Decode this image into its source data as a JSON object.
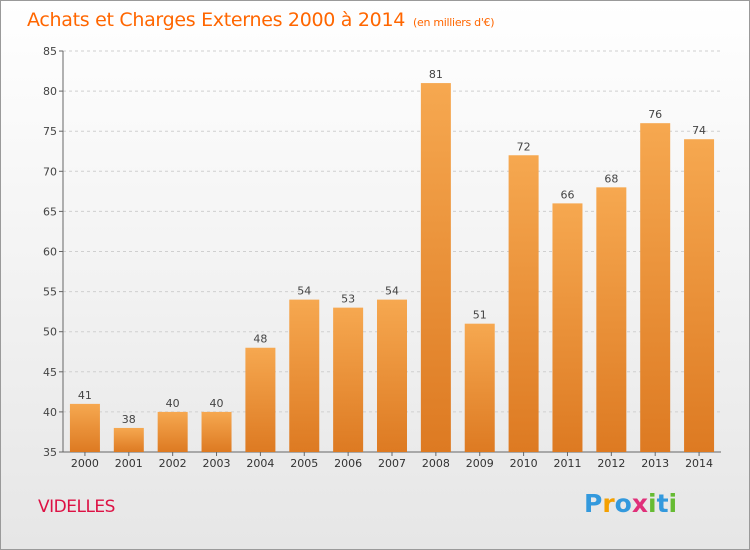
{
  "title": "Achats et Charges Externes 2000 à 2014",
  "unit": "(en milliers d'€)",
  "place": "VIDELLES",
  "logo": {
    "letters": [
      "P",
      "r",
      "o",
      "x",
      "i",
      "t",
      "i"
    ],
    "colors": [
      "#3399dd",
      "#f4a000",
      "#3399dd",
      "#e0307a",
      "#66bb33",
      "#3399dd",
      "#66bb33"
    ]
  },
  "colors": {
    "bar_light": "#f6a850",
    "bar_dark": "#dd7a22",
    "title": "#ff6600",
    "place": "#dd1144"
  },
  "chart_data": {
    "type": "bar",
    "categories": [
      "2000",
      "2001",
      "2002",
      "2003",
      "2004",
      "2005",
      "2006",
      "2007",
      "2008",
      "2009",
      "2010",
      "2011",
      "2012",
      "2013",
      "2014"
    ],
    "values": [
      41,
      38,
      40,
      40,
      48,
      54,
      53,
      54,
      81,
      51,
      72,
      66,
      68,
      76,
      74
    ],
    "yticks": [
      35,
      40,
      45,
      50,
      55,
      60,
      65,
      70,
      75,
      80,
      85
    ],
    "ylim": [
      35,
      85
    ],
    "grid": true,
    "xlabel": "",
    "ylabel": ""
  }
}
